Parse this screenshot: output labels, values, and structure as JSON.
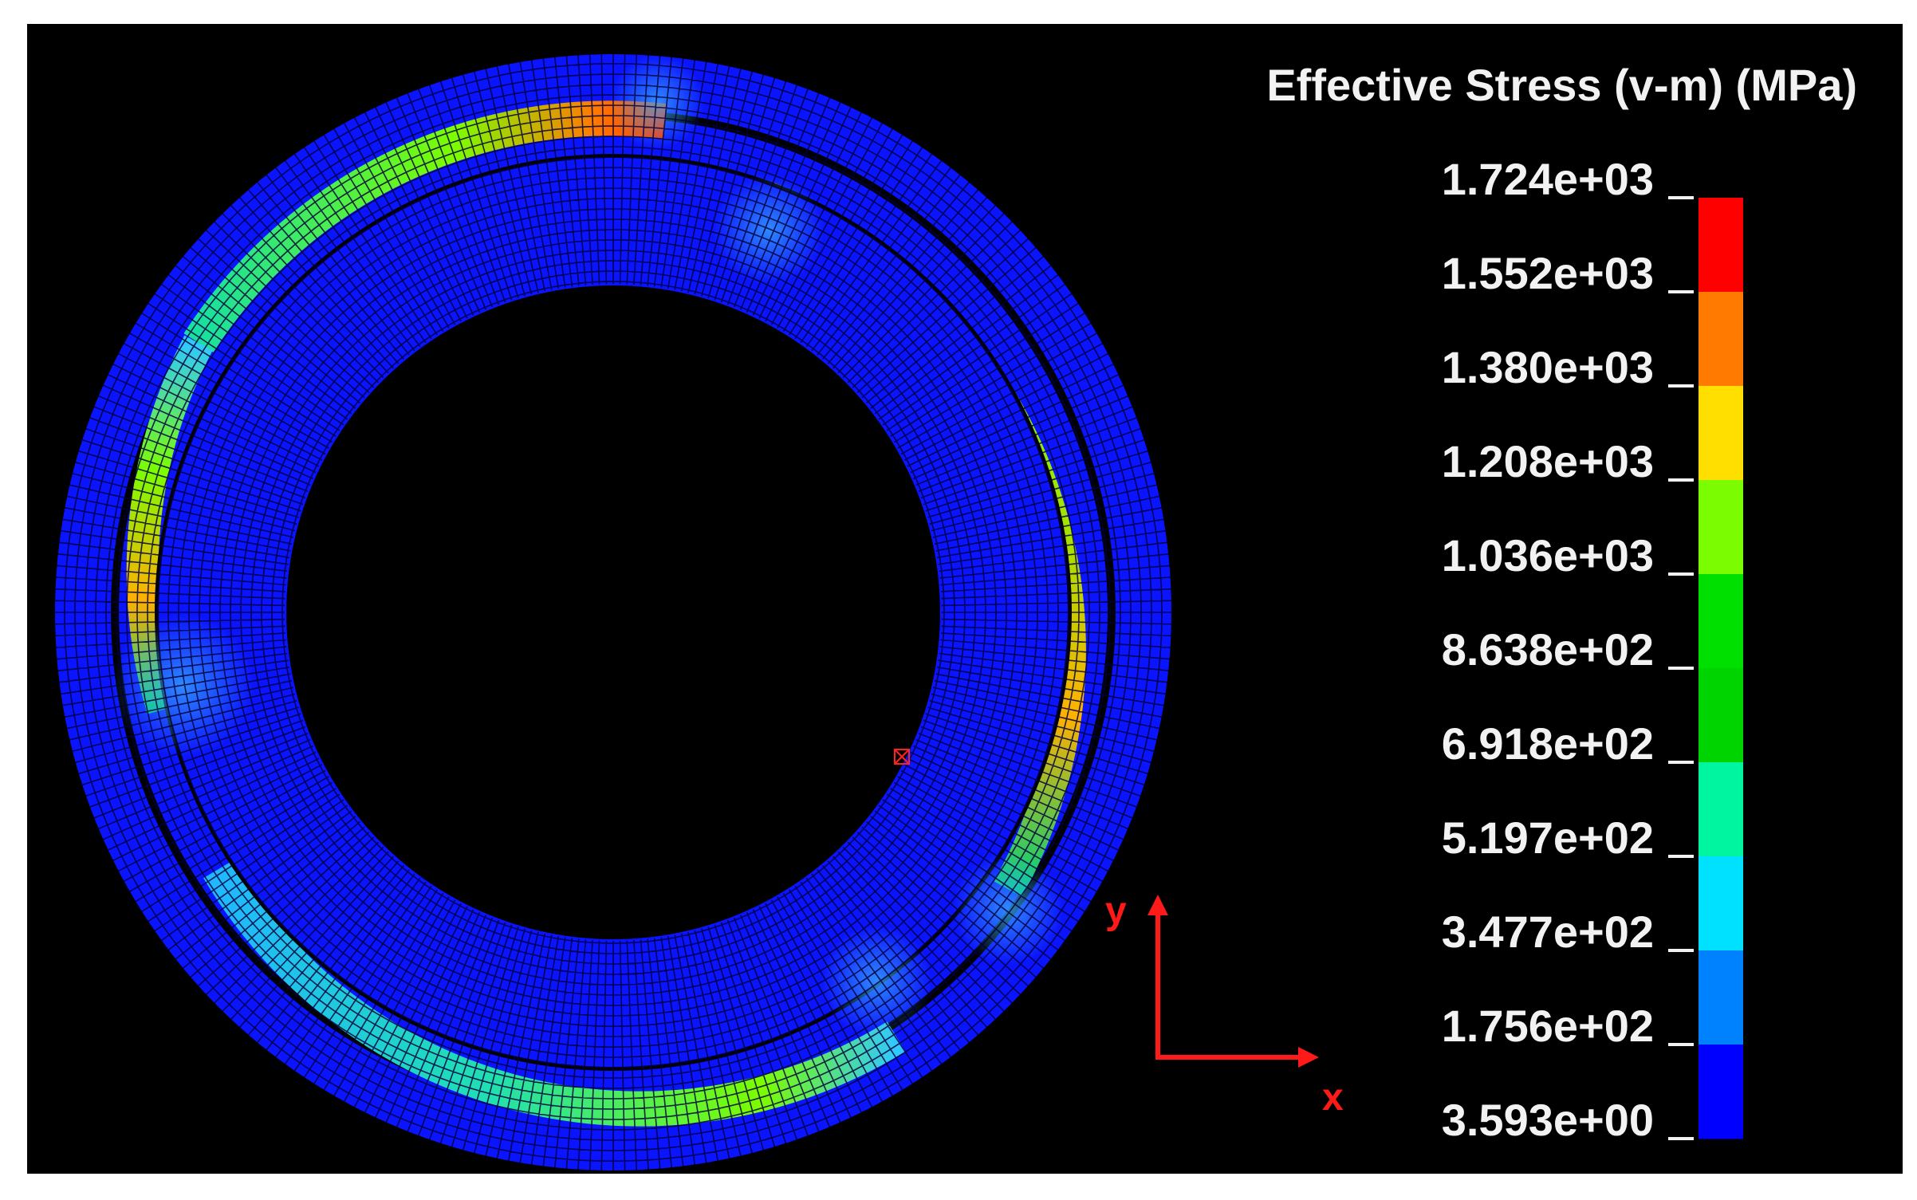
{
  "legend": {
    "title": "Effective Stress (v-m) (MPa)",
    "ticks": [
      "1.724e+03",
      "1.552e+03",
      "1.380e+03",
      "1.208e+03",
      "1.036e+03",
      "8.638e+02",
      "6.918e+02",
      "5.197e+02",
      "3.477e+02",
      "1.756e+02",
      "3.593e+00"
    ],
    "colors": [
      "#ff0000",
      "#ff7a00",
      "#ffdf00",
      "#7cfc00",
      "#00e000",
      "#00d400",
      "#00f5a0",
      "#00e1ff",
      "#0082ff",
      "#0000ff"
    ]
  },
  "axes": {
    "x_label": "x",
    "y_label": "y",
    "color": "#ff1a1a"
  },
  "mesh_colors": {
    "base": "#0a14ff",
    "line": "#00003a",
    "background": "#000000"
  }
}
